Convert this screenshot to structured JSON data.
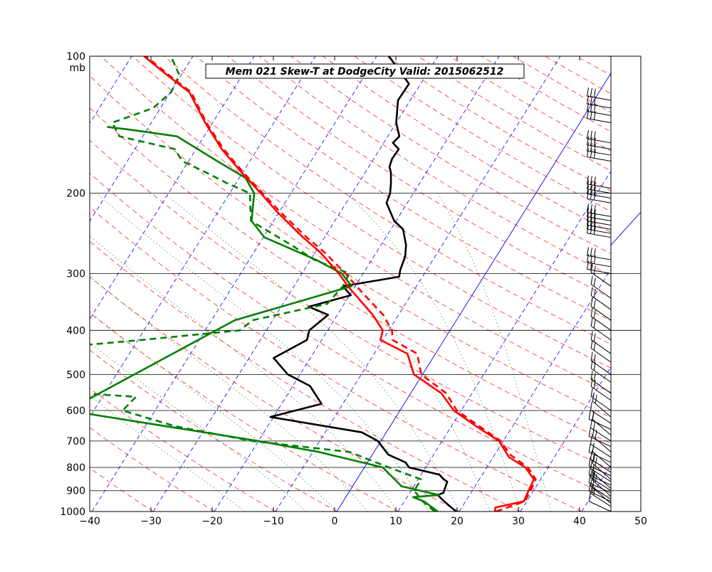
{
  "chart_data": {
    "type": "line",
    "chart_kind": "skew-t log-p sounding",
    "title": "Mem 021  Skew-T at DodgeCity    Valid: 2015062512",
    "xlabel": "",
    "ylabel": "mb",
    "xlim": [
      -40,
      50
    ],
    "ylim": [
      1000,
      100
    ],
    "y_scale": "log",
    "x_ticks": [
      "−40",
      "−30",
      "−20",
      "−10",
      "0",
      "10",
      "20",
      "30",
      "40",
      "50"
    ],
    "y_ticks": [
      "100",
      "200",
      "300",
      "400",
      "500",
      "600",
      "700",
      "800",
      "900",
      "1000"
    ],
    "y_tick_values": [
      100,
      200,
      300,
      400,
      500,
      600,
      700,
      800,
      900,
      1000
    ],
    "grid": true,
    "colors": {
      "temperature": "#000000",
      "dewpoint": "#008000",
      "parcel": "#ff0000",
      "isotherm": "#0000ff",
      "dry_adiabat": "#ff0000",
      "moist_adiabat": "#008000",
      "barbs": "#000000",
      "isobar": "#000000"
    },
    "series": [
      {
        "role": "temperature",
        "style": "solid",
        "points": [
          [
            1000,
            19.5
          ],
          [
            950,
            16.5
          ],
          [
            920,
            14.8
          ],
          [
            910,
            15.5
          ],
          [
            860,
            15.0
          ],
          [
            850,
            14.2
          ],
          [
            830,
            13.0
          ],
          [
            800,
            7.3
          ],
          [
            780,
            6.2
          ],
          [
            750,
            2.6
          ],
          [
            700,
            -0.5
          ],
          [
            670,
            -4.0
          ],
          [
            620,
            -20.5
          ],
          [
            580,
            -13.5
          ],
          [
            530,
            -17.2
          ],
          [
            500,
            -22.0
          ],
          [
            460,
            -26.0
          ],
          [
            420,
            -22.4
          ],
          [
            400,
            -23.0
          ],
          [
            370,
            -21.5
          ],
          [
            355,
            -25.5
          ],
          [
            335,
            -19.8
          ],
          [
            320,
            -22.0
          ],
          [
            305,
            -13.8
          ],
          [
            295,
            -14.3
          ],
          [
            275,
            -14.9
          ],
          [
            260,
            -15.9
          ],
          [
            240,
            -18.0
          ],
          [
            230,
            -20.3
          ],
          [
            210,
            -23.4
          ],
          [
            200,
            -23.8
          ],
          [
            190,
            -24.7
          ],
          [
            180,
            -25.8
          ],
          [
            175,
            -26.6
          ],
          [
            168,
            -27.0
          ],
          [
            160,
            -26.9
          ],
          [
            155,
            -28.5
          ],
          [
            150,
            -28.1
          ],
          [
            140,
            -30.0
          ],
          [
            125,
            -32.0
          ],
          [
            115,
            -31.9
          ],
          [
            100,
            -38.0
          ]
        ]
      },
      {
        "role": "dewpoint",
        "style": "solid",
        "points": [
          [
            1000,
            16.5
          ],
          [
            950,
            13.2
          ],
          [
            930,
            11.0
          ],
          [
            920,
            15.0
          ],
          [
            880,
            8.0
          ],
          [
            800,
            3.0
          ],
          [
            740,
            -9.0
          ],
          [
            700,
            -20.0
          ],
          [
            600,
            -54.3
          ],
          [
            380,
            -36.2
          ],
          [
            320,
            -20.6
          ],
          [
            300,
            -23.5
          ],
          [
            280,
            -29.1
          ],
          [
            250,
            -39.8
          ],
          [
            230,
            -43.6
          ],
          [
            200,
            -46.0
          ],
          [
            185,
            -49.0
          ],
          [
            170,
            -55.3
          ],
          [
            150,
            -64.4
          ],
          [
            145,
            -72.7
          ],
          [
            143,
            -76.8
          ]
        ]
      },
      {
        "role": "dewpoint",
        "style": "dashed",
        "points": [
          [
            1000,
            16.0
          ],
          [
            950,
            13.0
          ],
          [
            900,
            10.5
          ],
          [
            850,
            10.5
          ],
          [
            800,
            4.0
          ],
          [
            740,
            -4.0
          ],
          [
            700,
            -21.0
          ],
          [
            650,
            -35.0
          ],
          [
            600,
            -45.3
          ],
          [
            560,
            -44.5
          ],
          [
            540,
            -63.2
          ],
          [
            520,
            -69.2
          ],
          [
            500,
            -60.5
          ],
          [
            460,
            -64.8
          ],
          [
            440,
            -65.3
          ],
          [
            420,
            -49.5
          ],
          [
            400,
            -34.3
          ],
          [
            380,
            -33.3
          ],
          [
            350,
            -22.8
          ],
          [
            320,
            -22.0
          ],
          [
            300,
            -22.3
          ],
          [
            280,
            -29.4
          ],
          [
            260,
            -34.6
          ],
          [
            230,
            -43.7
          ],
          [
            200,
            -46.7
          ],
          [
            190,
            -51.5
          ],
          [
            180,
            -56.0
          ],
          [
            170,
            -61.0
          ],
          [
            160,
            -63.5
          ],
          [
            150,
            -73.8
          ],
          [
            140,
            -76.4
          ],
          [
            130,
            -71.2
          ],
          [
            120,
            -69.9
          ],
          [
            110,
            -70.3
          ],
          [
            100,
            -73.6
          ]
        ]
      },
      {
        "role": "parcel",
        "style": "solid",
        "points": [
          [
            1000,
            25.8
          ],
          [
            980,
            25.5
          ],
          [
            950,
            29.5
          ],
          [
            900,
            29.2
          ],
          [
            850,
            28.9
          ],
          [
            800,
            26.3
          ],
          [
            760,
            22.6
          ],
          [
            700,
            19.3
          ],
          [
            650,
            14.1
          ],
          [
            600,
            8.8
          ],
          [
            550,
            5.0
          ],
          [
            500,
            -1.4
          ],
          [
            450,
            -4.6
          ],
          [
            420,
            -10.4
          ],
          [
            400,
            -11.0
          ],
          [
            370,
            -14.2
          ],
          [
            320,
            -21.2
          ],
          [
            300,
            -24.0
          ],
          [
            270,
            -29.1
          ],
          [
            250,
            -33.5
          ],
          [
            220,
            -40.3
          ],
          [
            200,
            -44.9
          ],
          [
            180,
            -50.2
          ],
          [
            160,
            -55.8
          ],
          [
            140,
            -61.2
          ],
          [
            120,
            -66.9
          ],
          [
            110,
            -72.3
          ],
          [
            100,
            -78.0
          ]
        ]
      },
      {
        "role": "parcel",
        "style": "dashed",
        "points": [
          [
            1000,
            26.0
          ],
          [
            950,
            29.7
          ],
          [
            900,
            29.5
          ],
          [
            850,
            29.2
          ],
          [
            800,
            26.7
          ],
          [
            750,
            22.5
          ],
          [
            700,
            19.6
          ],
          [
            650,
            14.6
          ],
          [
            600,
            9.3
          ],
          [
            550,
            5.8
          ],
          [
            500,
            -0.2
          ],
          [
            450,
            -3.0
          ],
          [
            420,
            -8.4
          ],
          [
            400,
            -9.5
          ],
          [
            370,
            -12.5
          ],
          [
            320,
            -19.8
          ],
          [
            300,
            -22.9
          ],
          [
            270,
            -28.4
          ],
          [
            250,
            -32.9
          ],
          [
            220,
            -39.8
          ],
          [
            200,
            -44.6
          ],
          [
            180,
            -49.9
          ],
          [
            160,
            -55.5
          ],
          [
            140,
            -61.0
          ],
          [
            120,
            -66.6
          ],
          [
            110,
            -72.0
          ],
          [
            100,
            -77.7
          ]
        ]
      }
    ],
    "wind_barbs": {
      "column_x": 45,
      "pressures": [
        1000,
        975,
        960,
        950,
        940,
        925,
        910,
        900,
        890,
        875,
        860,
        850,
        835,
        820,
        800,
        780,
        760,
        740,
        720,
        700,
        680,
        660,
        640,
        620,
        600,
        570,
        550,
        520,
        500,
        470,
        450,
        420,
        400,
        380,
        360,
        340,
        320,
        300,
        290,
        280,
        250,
        245,
        240,
        235,
        230,
        225,
        210,
        205,
        200,
        195,
        170,
        165,
        160,
        155,
        140,
        135,
        130,
        125
      ]
    }
  }
}
